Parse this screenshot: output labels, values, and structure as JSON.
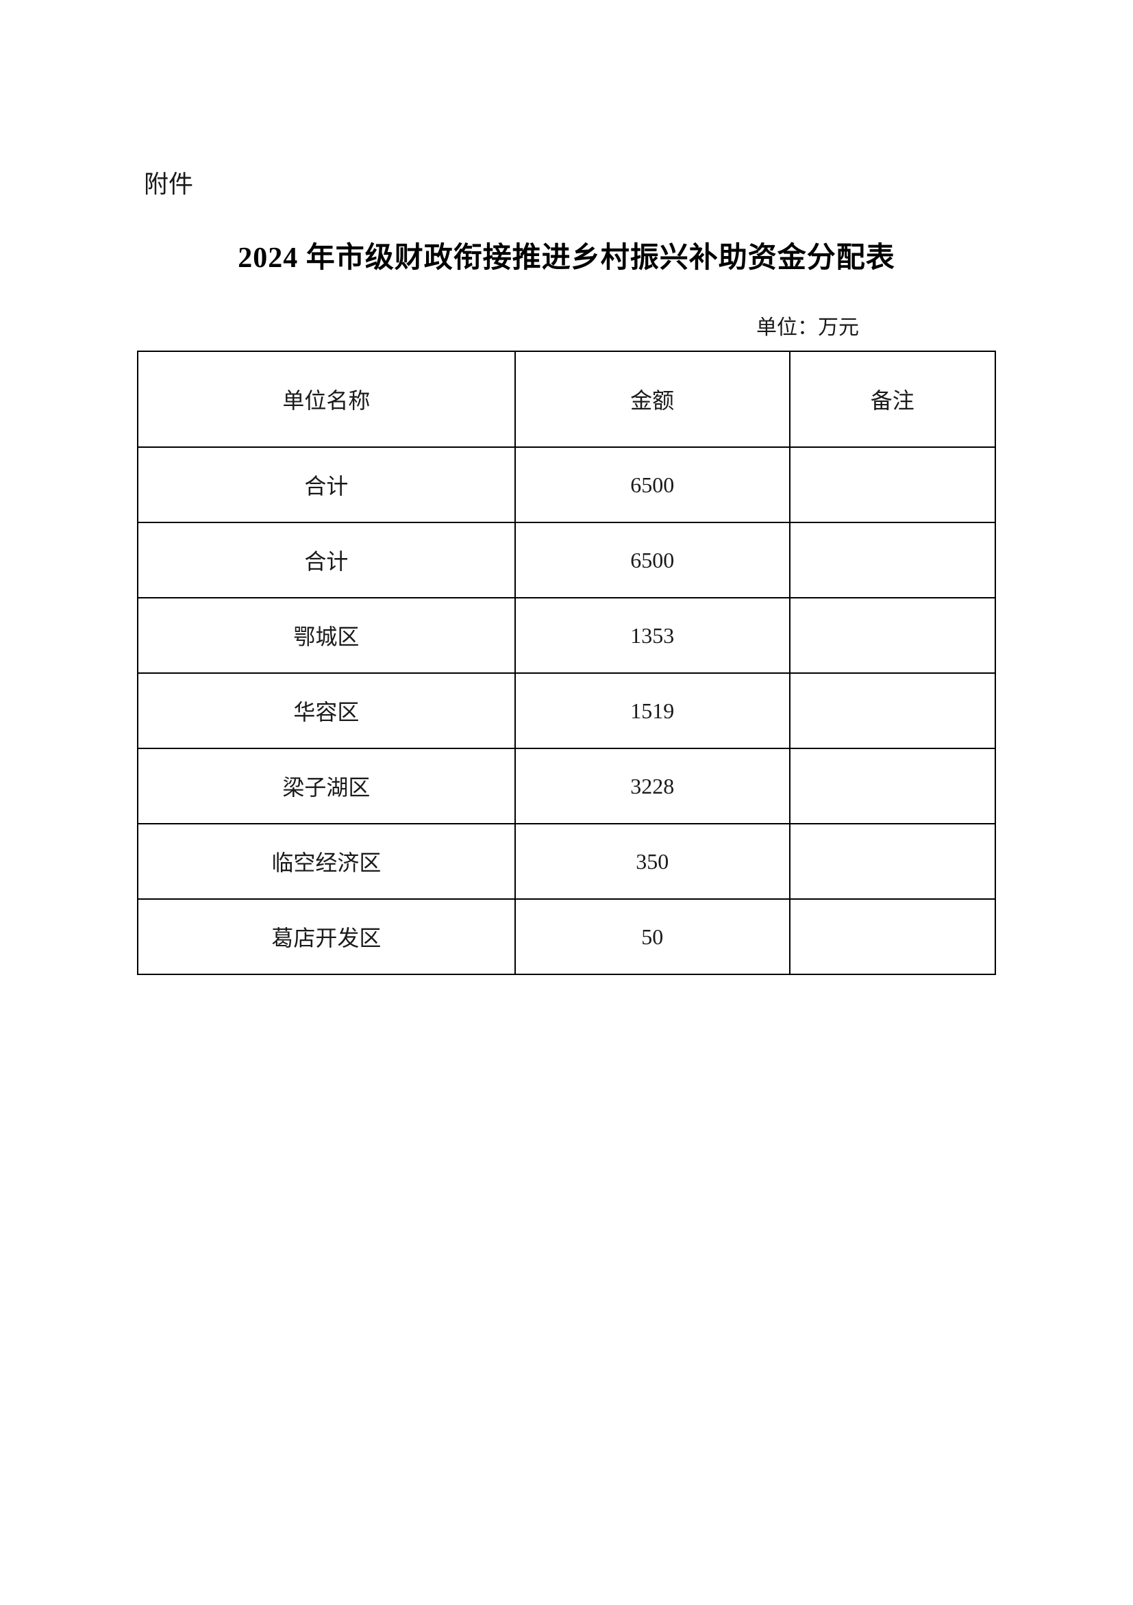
{
  "document": {
    "attachment_label": "附件",
    "title": "2024 年市级财政衔接推进乡村振兴补助资金分配表",
    "unit_label": "单位：万元"
  },
  "table": {
    "columns": [
      "单位名称",
      "金额",
      "备注"
    ],
    "rows": [
      {
        "name": "合计",
        "amount": "6500",
        "note": ""
      },
      {
        "name": "合计",
        "amount": "6500",
        "note": ""
      },
      {
        "name": "鄂城区",
        "amount": "1353",
        "note": ""
      },
      {
        "name": "华容区",
        "amount": "1519",
        "note": ""
      },
      {
        "name": "梁子湖区",
        "amount": "3228",
        "note": ""
      },
      {
        "name": "临空经济区",
        "amount": "350",
        "note": ""
      },
      {
        "name": "葛店开发区",
        "amount": "50",
        "note": ""
      }
    ],
    "border_color": "#000000",
    "background_color": "#ffffff",
    "text_color": "#1a1a1a",
    "header_fontsize": 32,
    "cell_fontsize": 32
  }
}
